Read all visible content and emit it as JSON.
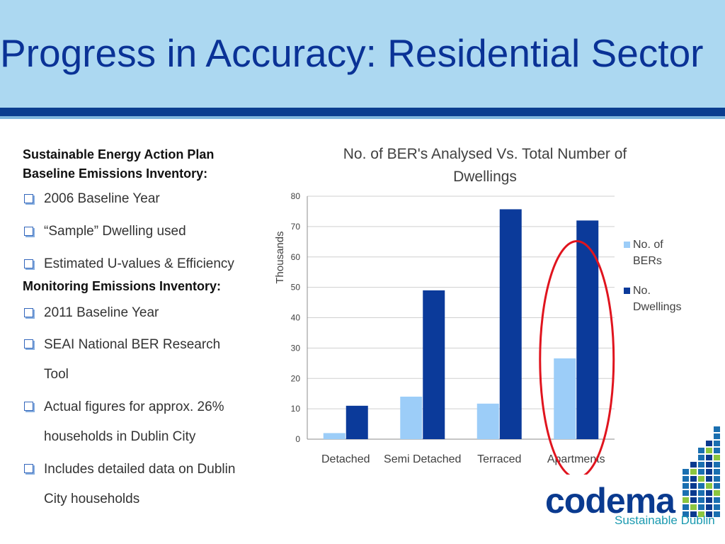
{
  "slide": {
    "title": "Progress in Accuracy: Residential Sector"
  },
  "left_panel": {
    "section1_heading": [
      "Sustainable Energy Action Plan",
      "Baseline Emissions Inventory:"
    ],
    "section1_items": [
      "2006 Baseline Year",
      "“Sample” Dwelling used",
      "Estimated U-values & Efficiency"
    ],
    "section2_heading": "Monitoring Emissions Inventory:",
    "section2_items": [
      [
        "2011 Baseline Year"
      ],
      [
        "SEAI National BER Research",
        "Tool"
      ],
      [
        "Actual figures for approx. 26%",
        "households in Dublin City"
      ],
      [
        "Includes detailed data on Dublin",
        "City households"
      ]
    ]
  },
  "logo": {
    "name": "codema",
    "tagline": "Sustainable Dublin"
  },
  "chart_data": {
    "type": "bar",
    "title_lines": [
      "No. of BER's Analysed Vs. Total Number of",
      "Dwellings"
    ],
    "ylabel": "Thousands",
    "ylim": [
      0,
      80
    ],
    "yticks": [
      0,
      10,
      20,
      30,
      40,
      50,
      60,
      70,
      80
    ],
    "categories": [
      "Detached",
      "Semi Detached",
      "Terraced",
      "Apartments"
    ],
    "series": [
      {
        "name": "No. of BERs",
        "legend_lines": [
          "No. of",
          "BERs"
        ],
        "color": "#9ccdf8",
        "values": [
          2,
          14,
          11.7,
          26.6
        ]
      },
      {
        "name": "No. Dwellings",
        "legend_lines": [
          "No.",
          "Dwellings"
        ],
        "color": "#0b3a9a",
        "values": [
          11,
          49,
          75.7,
          72
        ]
      }
    ],
    "grid": true,
    "legend": "right",
    "highlight": {
      "category": "Apartments",
      "shape": "ellipse",
      "color": "#e0141e"
    }
  },
  "colors": {
    "header_bg": "#acd8f1",
    "title": "#0a3296",
    "band": "#0b3d8f"
  }
}
